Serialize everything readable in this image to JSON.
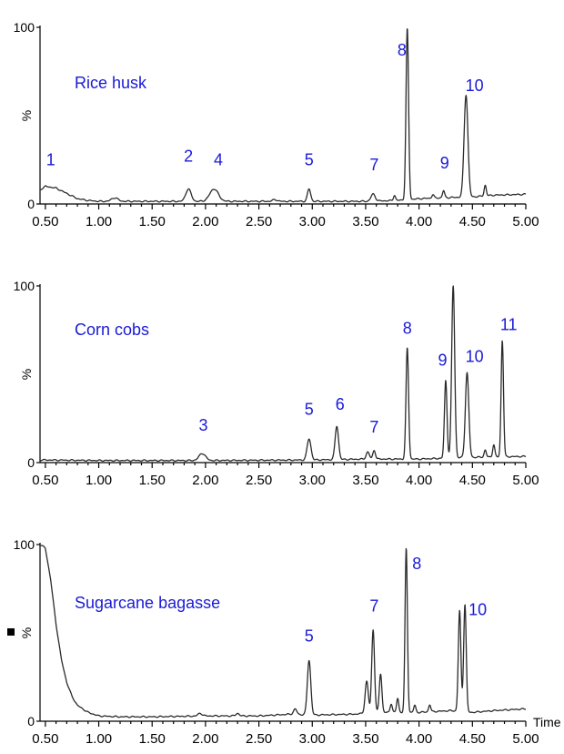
{
  "colors": {
    "trace": "#2a2a2a",
    "labels": "#1a1ad6",
    "axis": "#000000"
  },
  "chart_data": [
    {
      "type": "line",
      "title": "Rice husk",
      "xlabel": "",
      "ylabel": "%",
      "xlim": [
        0.45,
        5.0
      ],
      "ylim": [
        0,
        100
      ],
      "xticks": [
        "0.50",
        "1.00",
        "1.50",
        "2.00",
        "2.50",
        "3.00",
        "3.50",
        "4.00",
        "4.50",
        "5.00"
      ],
      "yticks": [
        "0",
        "100"
      ],
      "baseline": [
        [
          0.45,
          8
        ],
        [
          0.5,
          10
        ],
        [
          0.6,
          9
        ],
        [
          0.7,
          6
        ],
        [
          0.8,
          3
        ],
        [
          0.9,
          2
        ],
        [
          1.0,
          1.5
        ],
        [
          1.5,
          1.5
        ],
        [
          2.0,
          1.5
        ],
        [
          2.5,
          1.5
        ],
        [
          3.0,
          1.5
        ],
        [
          3.5,
          1.5
        ],
        [
          3.8,
          2
        ],
        [
          4.0,
          3
        ],
        [
          4.2,
          3.5
        ],
        [
          4.5,
          4
        ],
        [
          4.7,
          5
        ],
        [
          5.0,
          5.5
        ]
      ],
      "peaks": [
        {
          "x": 1.15,
          "height": 2,
          "width": 0.03
        },
        {
          "x": 1.84,
          "height": 7,
          "width": 0.025
        },
        {
          "x": 2.08,
          "height": 7,
          "width": 0.04
        },
        {
          "x": 2.65,
          "height": 1,
          "width": 0.02
        },
        {
          "x": 2.97,
          "height": 7,
          "width": 0.015
        },
        {
          "x": 3.57,
          "height": 4,
          "width": 0.02
        },
        {
          "x": 3.77,
          "height": 3,
          "width": 0.01
        },
        {
          "x": 3.89,
          "height": 97,
          "width": 0.012
        },
        {
          "x": 4.13,
          "height": 2,
          "width": 0.01
        },
        {
          "x": 4.23,
          "height": 4,
          "width": 0.01
        },
        {
          "x": 4.44,
          "height": 58,
          "width": 0.018
        },
        {
          "x": 4.62,
          "height": 6,
          "width": 0.01
        }
      ],
      "peak_labels": [
        {
          "text": "1",
          "x": 0.55,
          "y": 22
        },
        {
          "text": "2",
          "x": 1.84,
          "y": 24
        },
        {
          "text": "4",
          "x": 2.12,
          "y": 22
        },
        {
          "text": "5",
          "x": 2.97,
          "y": 22
        },
        {
          "text": "7",
          "x": 3.58,
          "y": 19
        },
        {
          "text": "8",
          "x": 3.84,
          "y": 84
        },
        {
          "text": "9",
          "x": 4.24,
          "y": 20
        },
        {
          "text": "10",
          "x": 4.52,
          "y": 64
        }
      ],
      "sample_label": "Rice husk"
    },
    {
      "type": "line",
      "title": "Corn cobs",
      "xlabel": "",
      "ylabel": "%",
      "xlim": [
        0.45,
        5.0
      ],
      "ylim": [
        0,
        100
      ],
      "xticks": [
        "0.50",
        "1.00",
        "1.50",
        "2.00",
        "2.50",
        "3.00",
        "3.50",
        "4.00",
        "4.50",
        "5.00"
      ],
      "yticks": [
        "0",
        "100"
      ],
      "baseline": [
        [
          0.45,
          1.5
        ],
        [
          1.0,
          1.2
        ],
        [
          2.0,
          1.2
        ],
        [
          3.0,
          1.5
        ],
        [
          3.5,
          2
        ],
        [
          4.0,
          2
        ],
        [
          4.5,
          3
        ],
        [
          5.0,
          3.5
        ]
      ],
      "peaks": [
        {
          "x": 1.97,
          "height": 4,
          "width": 0.03
        },
        {
          "x": 2.97,
          "height": 12,
          "width": 0.018
        },
        {
          "x": 3.23,
          "height": 19,
          "width": 0.016
        },
        {
          "x": 3.52,
          "height": 4,
          "width": 0.015
        },
        {
          "x": 3.58,
          "height": 5,
          "width": 0.012
        },
        {
          "x": 3.89,
          "height": 63,
          "width": 0.012
        },
        {
          "x": 4.25,
          "height": 44,
          "width": 0.012
        },
        {
          "x": 4.32,
          "height": 98,
          "width": 0.014
        },
        {
          "x": 4.45,
          "height": 48,
          "width": 0.016
        },
        {
          "x": 4.62,
          "height": 4,
          "width": 0.01
        },
        {
          "x": 4.7,
          "height": 7,
          "width": 0.01
        },
        {
          "x": 4.78,
          "height": 66,
          "width": 0.011
        }
      ],
      "peak_labels": [
        {
          "text": "3",
          "x": 1.98,
          "y": 18
        },
        {
          "text": "5",
          "x": 2.97,
          "y": 27
        },
        {
          "text": "6",
          "x": 3.26,
          "y": 30
        },
        {
          "text": "7",
          "x": 3.58,
          "y": 17
        },
        {
          "text": "8",
          "x": 3.89,
          "y": 73
        },
        {
          "text": "9",
          "x": 4.22,
          "y": 55
        },
        {
          "text": "10",
          "x": 4.52,
          "y": 57
        },
        {
          "text": "11",
          "x": 4.84,
          "y": 75
        }
      ],
      "sample_label": "Corn cobs"
    },
    {
      "type": "line",
      "title": "Sugarcane bagasse",
      "xlabel": "Time",
      "ylabel": "%",
      "xlim": [
        0.45,
        5.0
      ],
      "ylim": [
        0,
        100
      ],
      "xticks": [
        "0.50",
        "1.00",
        "1.50",
        "2.00",
        "2.50",
        "3.00",
        "3.50",
        "4.00",
        "4.50",
        "5.00"
      ],
      "yticks": [
        "0",
        "100"
      ],
      "baseline": [
        [
          0.45,
          100
        ],
        [
          0.5,
          98
        ],
        [
          0.55,
          80
        ],
        [
          0.6,
          55
        ],
        [
          0.65,
          35
        ],
        [
          0.7,
          22
        ],
        [
          0.75,
          14
        ],
        [
          0.8,
          9
        ],
        [
          0.9,
          5
        ],
        [
          1.0,
          3
        ],
        [
          1.2,
          2.5
        ],
        [
          1.5,
          2.5
        ],
        [
          2.0,
          3
        ],
        [
          2.5,
          3
        ],
        [
          2.8,
          4
        ],
        [
          3.0,
          3.5
        ],
        [
          3.4,
          4
        ],
        [
          3.6,
          5
        ],
        [
          3.8,
          5
        ],
        [
          4.0,
          5
        ],
        [
          4.3,
          6
        ],
        [
          4.5,
          5
        ],
        [
          4.7,
          6
        ],
        [
          5.0,
          7
        ]
      ],
      "peaks": [
        {
          "x": 1.95,
          "height": 1.5,
          "width": 0.02
        },
        {
          "x": 2.3,
          "height": 1.5,
          "width": 0.015
        },
        {
          "x": 2.84,
          "height": 3,
          "width": 0.015
        },
        {
          "x": 2.97,
          "height": 31,
          "width": 0.016
        },
        {
          "x": 3.51,
          "height": 18,
          "width": 0.015
        },
        {
          "x": 3.57,
          "height": 47,
          "width": 0.013
        },
        {
          "x": 3.64,
          "height": 22,
          "width": 0.012
        },
        {
          "x": 3.74,
          "height": 5,
          "width": 0.01
        },
        {
          "x": 3.8,
          "height": 8,
          "width": 0.01
        },
        {
          "x": 3.88,
          "height": 93,
          "width": 0.011
        },
        {
          "x": 3.96,
          "height": 4,
          "width": 0.01
        },
        {
          "x": 4.1,
          "height": 4,
          "width": 0.01
        },
        {
          "x": 4.38,
          "height": 57,
          "width": 0.012
        },
        {
          "x": 4.43,
          "height": 61,
          "width": 0.012
        }
      ],
      "peak_labels": [
        {
          "text": "5",
          "x": 2.97,
          "y": 45
        },
        {
          "text": "7",
          "x": 3.58,
          "y": 62
        },
        {
          "text": "8",
          "x": 3.98,
          "y": 86
        },
        {
          "text": "10",
          "x": 4.55,
          "y": 60
        }
      ],
      "sample_label": "Sugarcane bagasse"
    }
  ]
}
